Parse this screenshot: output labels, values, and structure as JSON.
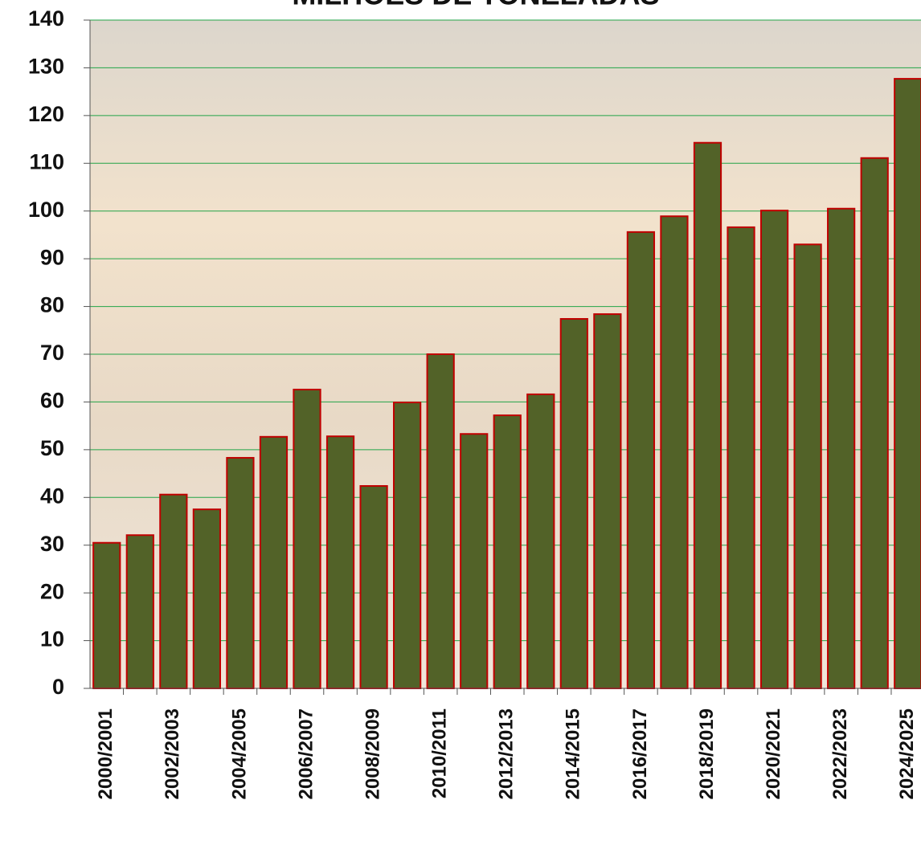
{
  "chart_data": {
    "type": "bar",
    "title": "MILHÕES DE TONELADAS",
    "categories": [
      "2000/2001",
      null,
      "2002/2003",
      null,
      "2004/2005",
      null,
      "2006/2007",
      null,
      "2008/2009",
      null,
      "2010/2011",
      null,
      "2012/2013",
      null,
      "2014/2015",
      null,
      "2016/2017",
      null,
      "2018/2019",
      null,
      "2020/2021",
      null,
      "2022/2023",
      null,
      "2024/2025"
    ],
    "values": [
      30.5,
      32.1,
      40.6,
      37.5,
      48.3,
      52.7,
      62.6,
      52.8,
      42.4,
      59.9,
      70.0,
      53.3,
      57.2,
      61.6,
      77.4,
      78.4,
      95.6,
      98.9,
      114.3,
      96.6,
      100.1,
      93.0,
      100.5,
      111.1,
      127.7
    ],
    "color": "#526228",
    "edge_color": "#c00000",
    "grid_color": "#22a447",
    "ylim": [
      0,
      140
    ],
    "yticks": [
      0,
      10,
      20,
      30,
      40,
      50,
      60,
      70,
      80,
      90,
      100,
      110,
      120,
      130,
      140
    ],
    "grid": true
  }
}
